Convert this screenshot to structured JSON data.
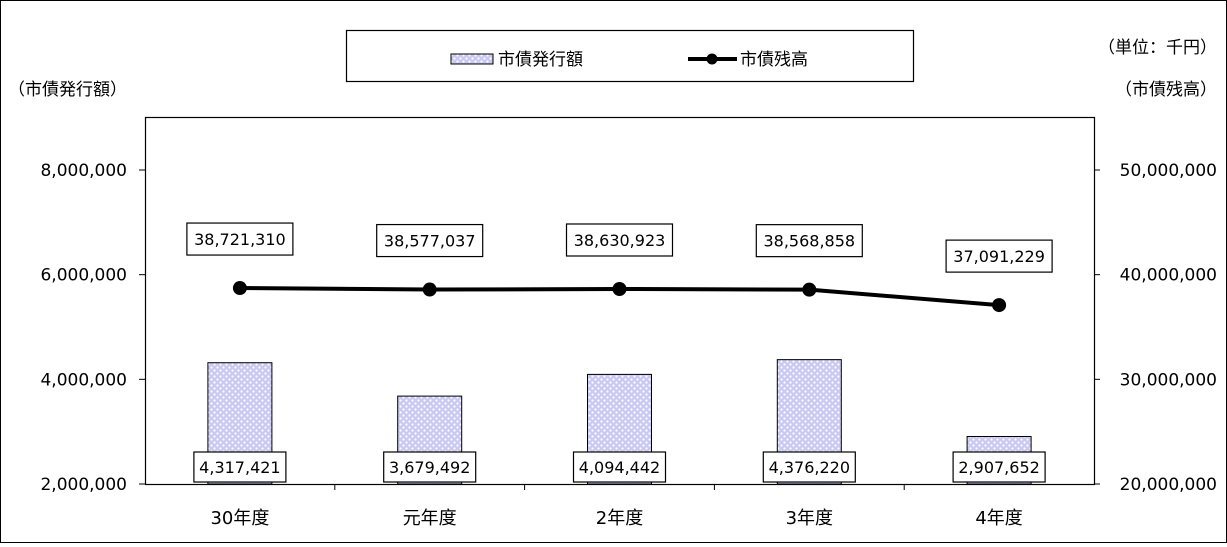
{
  "chart_data": {
    "type": "bar",
    "title": "",
    "unit_label": "（単位：千円）",
    "categories": [
      "30年度",
      "元年度",
      "2年度",
      "3年度",
      "4年度"
    ],
    "left_axis": {
      "label": "（市債発行額）",
      "ylim": [
        2000000,
        8000000
      ],
      "ticks": [
        2000000,
        4000000,
        6000000,
        8000000
      ],
      "tick_labels": [
        "2,000,000",
        "4,000,000",
        "6,000,000",
        "8,000,000"
      ]
    },
    "right_axis": {
      "label": "（市債残高）",
      "ylim": [
        20000000,
        50000000
      ],
      "ticks": [
        20000000,
        30000000,
        40000000,
        50000000
      ],
      "tick_labels": [
        "20,000,000",
        "30,000,000",
        "40,000,000",
        "50,000,000"
      ]
    },
    "series": [
      {
        "name": "市債発行額",
        "type": "bar",
        "axis": "left",
        "values": [
          4317421,
          3679492,
          4094442,
          4376220,
          2907652
        ],
        "value_labels": [
          "4,317,421",
          "3,679,492",
          "4,094,442",
          "4,376,220",
          "2,907,652"
        ],
        "color": "#c8c8f0"
      },
      {
        "name": "市債残高",
        "type": "line",
        "axis": "right",
        "values": [
          38721310,
          38577037,
          38630923,
          38568858,
          37091229
        ],
        "value_labels": [
          "38,721,310",
          "38,577,037",
          "38,630,923",
          "38,568,858",
          "37,091,229"
        ],
        "color": "#000000"
      }
    ],
    "grid": false,
    "legend_position": "top-center"
  }
}
